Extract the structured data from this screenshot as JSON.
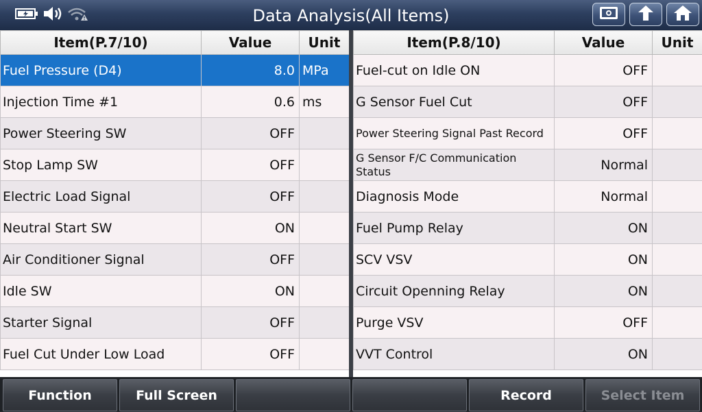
{
  "header": {
    "title": "Data Analysis(All Items)"
  },
  "icons": [
    "battery-icon",
    "speaker-icon",
    "wifi-warning-icon",
    "screenshot-icon",
    "back-icon",
    "home-icon"
  ],
  "colors": {
    "selected_row": "#1a73c9",
    "row_odd": "#f8f1f3",
    "row_even": "#ebe6ea"
  },
  "left_table": {
    "headers": [
      "Item(P.7/10)",
      "Value",
      "Unit"
    ],
    "rows": [
      {
        "item": "Fuel Pressure (D4)",
        "value": "8.0",
        "unit": "MPa"
      },
      {
        "item": "Injection Time #1",
        "value": "0.6",
        "unit": "ms"
      },
      {
        "item": "Power Steering SW",
        "value": "OFF",
        "unit": ""
      },
      {
        "item": "Stop Lamp SW",
        "value": "OFF",
        "unit": ""
      },
      {
        "item": "Electric Load Signal",
        "value": "OFF",
        "unit": ""
      },
      {
        "item": "Neutral Start SW",
        "value": "ON",
        "unit": ""
      },
      {
        "item": "Air Conditioner Signal",
        "value": "OFF",
        "unit": ""
      },
      {
        "item": "Idle SW",
        "value": "ON",
        "unit": ""
      },
      {
        "item": "Starter Signal",
        "value": "OFF",
        "unit": ""
      },
      {
        "item": "Fuel Cut Under Low Load",
        "value": "OFF",
        "unit": ""
      }
    ]
  },
  "right_table": {
    "headers": [
      "Item(P.8/10)",
      "Value",
      "Unit"
    ],
    "rows": [
      {
        "item": "Fuel-cut on Idle ON",
        "value": "OFF",
        "unit": ""
      },
      {
        "item": "G Sensor Fuel Cut",
        "value": "OFF",
        "unit": ""
      },
      {
        "item": "Power Steering Signal Past Record",
        "value": "OFF",
        "unit": ""
      },
      {
        "item": "G Sensor F/C Communication Status",
        "value": "Normal",
        "unit": ""
      },
      {
        "item": "Diagnosis Mode",
        "value": "Normal",
        "unit": ""
      },
      {
        "item": "Fuel Pump Relay",
        "value": "ON",
        "unit": ""
      },
      {
        "item": "SCV VSV",
        "value": "ON",
        "unit": ""
      },
      {
        "item": "Circuit Openning Relay",
        "value": "ON",
        "unit": ""
      },
      {
        "item": "Purge VSV",
        "value": "OFF",
        "unit": ""
      },
      {
        "item": "VVT Control",
        "value": "ON",
        "unit": ""
      }
    ]
  },
  "footer": {
    "buttons": [
      {
        "label": "Function"
      },
      {
        "label": "Full Screen"
      },
      {
        "label": ""
      },
      {
        "label": ""
      },
      {
        "label": "Record"
      },
      {
        "label": "Select Item"
      }
    ]
  }
}
